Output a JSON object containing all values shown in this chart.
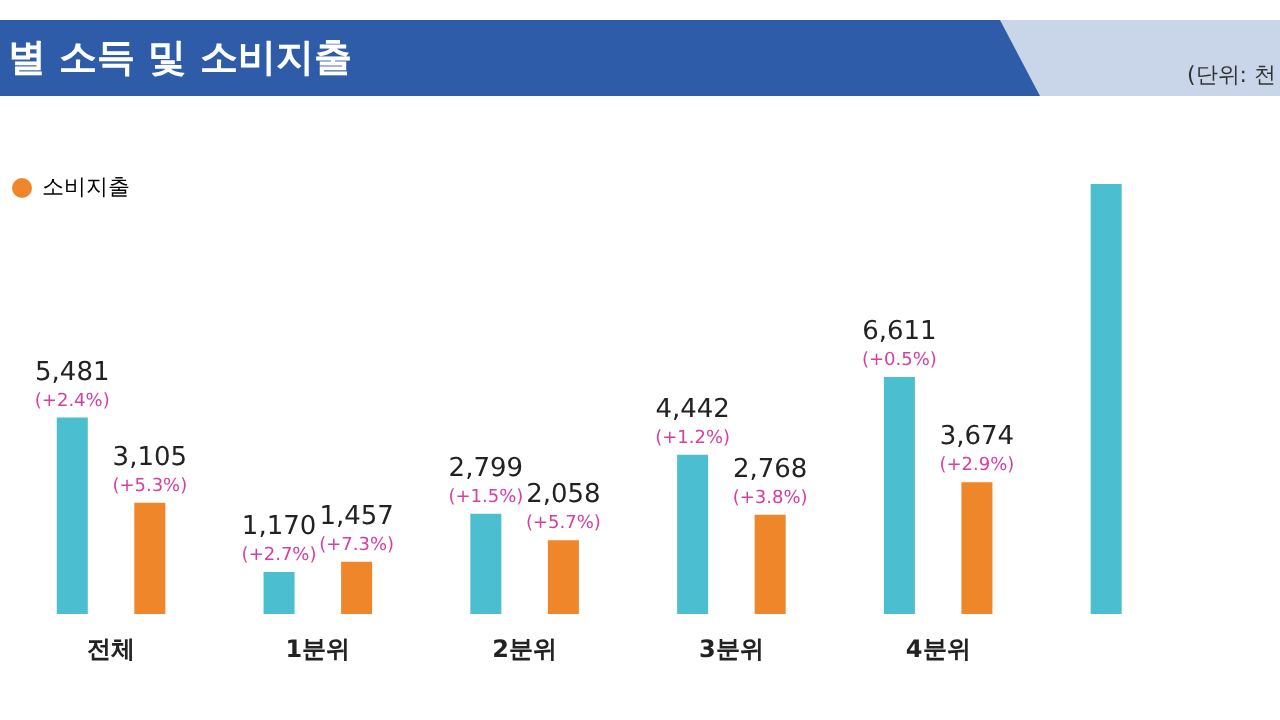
{
  "chart_data": {
    "type": "bar",
    "title": "별 소득 및 소비지출",
    "annotations": [
      "(단위: 천",
      "(+2.4%)",
      "(+5.3%)",
      "(+2.7%)",
      "(+7.3%)",
      "(+1.5%)",
      "(+5.7%)",
      "(+1.2%)",
      "(+3.8%)",
      "(+0.5%)",
      "(+2.9%)"
    ],
    "categories": [
      "전체",
      "1분위",
      "2분위",
      "3분위",
      "4분위",
      null
    ],
    "series": [
      {
        "color": "#4bbfcf",
        "values": [
          5481,
          1170,
          2799,
          4442,
          6611,
          12000
        ],
        "value_labels": [
          "5,481",
          "1,170",
          "2,799",
          "4,442",
          "6,611",
          null
        ]
      },
      {
        "name": "소비지출",
        "color": "#f0862a",
        "values": [
          3105,
          1457,
          2058,
          2768,
          3674,
          null
        ],
        "value_labels": [
          "3,105",
          "1,457",
          "2,058",
          "2,768",
          "3,674",
          null
        ]
      }
    ],
    "legend": "top left"
  }
}
